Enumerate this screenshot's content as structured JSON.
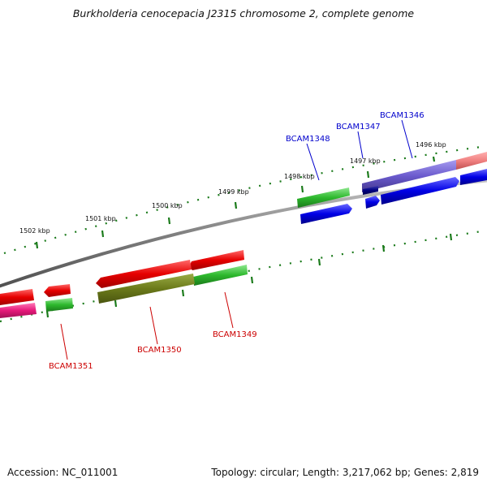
{
  "title": "Burkholderia cenocepacia J2315 chromosome 2, complete genome",
  "footer": {
    "accession": "Accession: NC_011001",
    "topology": "Topology: circular; Length: 3,217,062 bp; Genes: 2,819"
  },
  "scale_labels": [
    "1496 kbp",
    "1497 kbp",
    "1498 kbp",
    "1499 kbp",
    "1500 kbp",
    "1501 kbp",
    "1502 kbp"
  ],
  "gene_labels": {
    "forward": [
      "BCAM1346",
      "BCAM1347",
      "BCAM1348"
    ],
    "reverse": [
      "BCAM1349",
      "BCAM1350",
      "BCAM1351"
    ]
  },
  "colors": {
    "backbone": "#808080",
    "forward_label": "#0000cc",
    "reverse_label": "#cc0000",
    "tick": "#1a7a1a",
    "cds_red": "#e60000",
    "cds_green": "#2db82d",
    "cds_blue": "#0000e6",
    "cds_purple": "#6a5acd",
    "cds_olive": "#6b7a1a",
    "cds_pink": "#e6197a",
    "cds_salmon": "#f08080",
    "cds_navy": "#000080"
  }
}
